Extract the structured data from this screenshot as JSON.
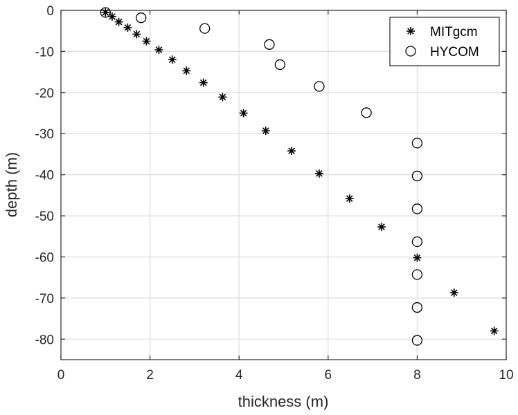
{
  "chart_data": {
    "type": "scatter",
    "title": "",
    "xlabel": "thickness (m)",
    "ylabel": "depth (m)",
    "xlim": [
      0,
      10
    ],
    "ylim": [
      -85,
      0
    ],
    "xticks": [
      0,
      2,
      4,
      6,
      8,
      10
    ],
    "yticks": [
      0,
      -10,
      -20,
      -30,
      -40,
      -50,
      -60,
      -70,
      -80
    ],
    "grid": true,
    "legend_position": "top-right",
    "series": [
      {
        "name": "MITgcm",
        "marker": "asterisk",
        "points": [
          [
            1.0,
            -0.5
          ],
          [
            1.15,
            -1.5
          ],
          [
            1.3,
            -2.8
          ],
          [
            1.5,
            -4.2
          ],
          [
            1.7,
            -5.8
          ],
          [
            1.92,
            -7.5
          ],
          [
            2.2,
            -9.6
          ],
          [
            2.5,
            -12.0
          ],
          [
            2.82,
            -14.7
          ],
          [
            3.2,
            -17.6
          ],
          [
            3.63,
            -21.1
          ],
          [
            4.1,
            -25.0
          ],
          [
            4.6,
            -29.3
          ],
          [
            5.18,
            -34.2
          ],
          [
            5.8,
            -39.7
          ],
          [
            6.48,
            -45.8
          ],
          [
            7.2,
            -52.7
          ],
          [
            8.0,
            -60.2
          ],
          [
            8.83,
            -68.7
          ],
          [
            9.73,
            -78.0
          ]
        ]
      },
      {
        "name": "HYCOM",
        "marker": "circle",
        "points": [
          [
            1.0,
            -0.5
          ],
          [
            1.8,
            -1.8
          ],
          [
            3.23,
            -4.4
          ],
          [
            4.68,
            -8.3
          ],
          [
            4.92,
            -13.2
          ],
          [
            5.8,
            -18.5
          ],
          [
            6.86,
            -24.9
          ],
          [
            8.0,
            -32.3
          ],
          [
            8.0,
            -40.3
          ],
          [
            8.0,
            -48.3
          ],
          [
            8.0,
            -56.3
          ],
          [
            8.0,
            -64.3
          ],
          [
            8.0,
            -72.3
          ],
          [
            8.0,
            -80.3
          ]
        ]
      }
    ]
  }
}
